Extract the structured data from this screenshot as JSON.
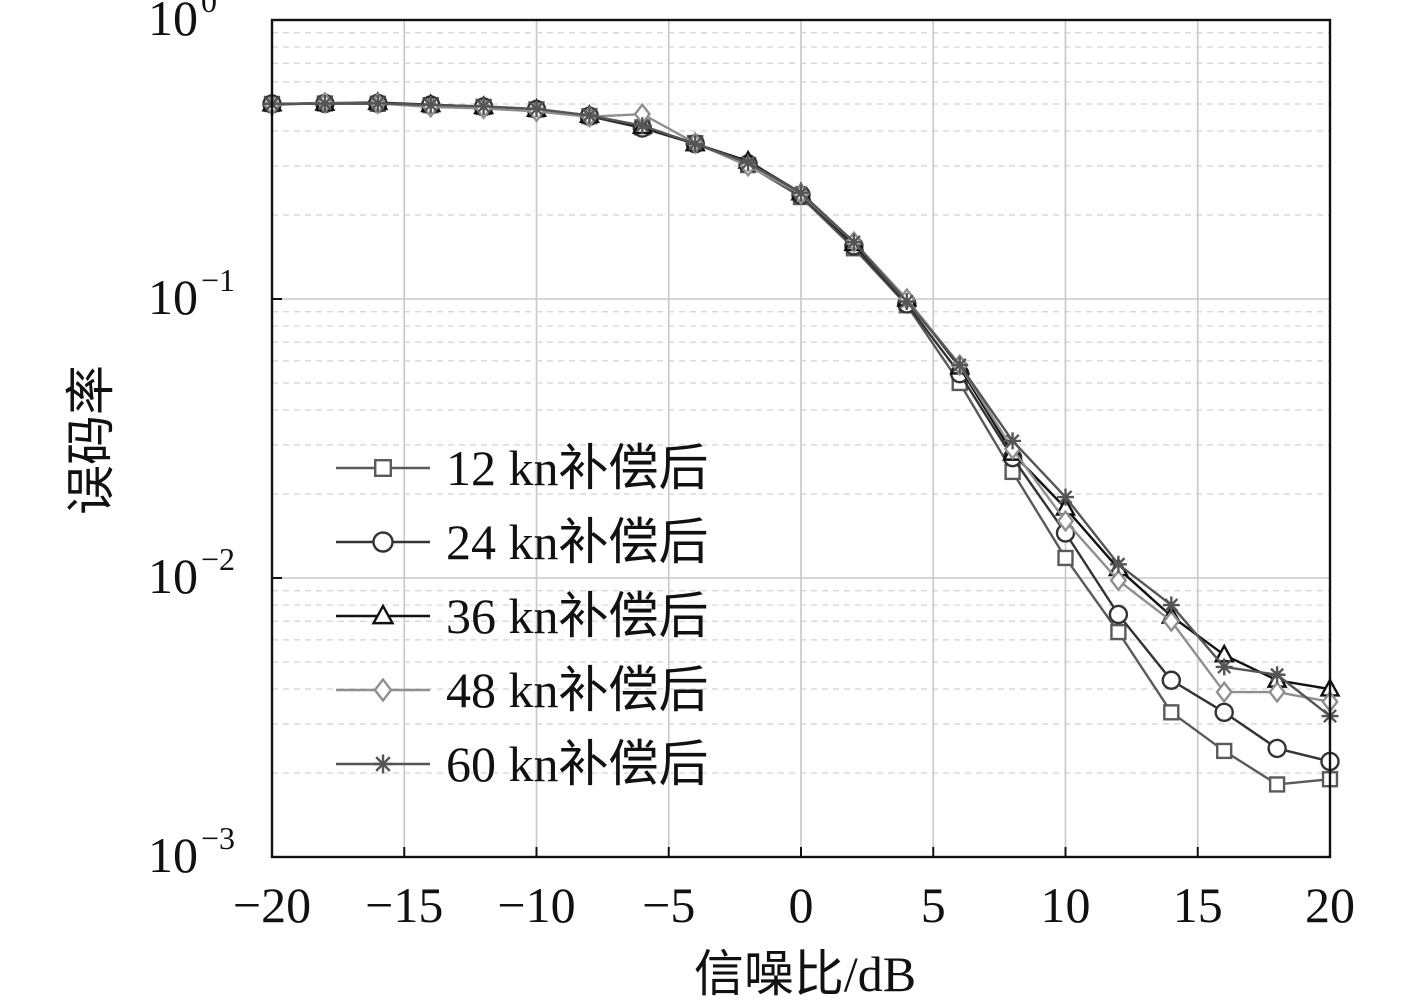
{
  "chart_data": {
    "type": "line",
    "title": "",
    "xlabel": "信噪比/dB",
    "ylabel": "误码率",
    "xscale": "linear",
    "yscale": "log",
    "xlim": [
      -20,
      20
    ],
    "ylim": [
      0.001,
      1
    ],
    "grid": true,
    "legend_position": "center-left",
    "x_ticks": [
      -20,
      -15,
      -10,
      -5,
      0,
      5,
      10,
      15,
      20
    ],
    "x_tick_labels": [
      "−20",
      "−15",
      "−10",
      "−5",
      "0",
      "5",
      "10",
      "15",
      "20"
    ],
    "y_ticks": [
      1,
      0.1,
      0.01,
      0.001
    ],
    "y_tick_labels": [
      {
        "base": "10",
        "exp": "0"
      },
      {
        "base": "10",
        "exp": "−1"
      },
      {
        "base": "10",
        "exp": "−2"
      },
      {
        "base": "10",
        "exp": "−3"
      }
    ],
    "x": [
      -20,
      -18,
      -16,
      -14,
      -12,
      -10,
      -8,
      -6,
      -4,
      -2,
      0,
      2,
      4,
      6,
      8,
      10,
      12,
      14,
      16,
      18,
      20
    ],
    "series": [
      {
        "name": "12 kn补偿后",
        "marker": "square",
        "color": "#5a5a5a",
        "values": [
          0.5,
          0.502,
          0.501,
          0.495,
          0.488,
          0.478,
          0.452,
          0.412,
          0.362,
          0.302,
          0.232,
          0.152,
          0.095,
          0.05,
          0.024,
          0.0118,
          0.0064,
          0.0033,
          0.0024,
          0.00182,
          0.0019
        ]
      },
      {
        "name": "24 kn补偿后",
        "marker": "circle",
        "color": "#333333",
        "values": [
          0.5,
          0.502,
          0.503,
          0.496,
          0.488,
          0.478,
          0.452,
          0.41,
          0.36,
          0.305,
          0.236,
          0.155,
          0.096,
          0.054,
          0.027,
          0.0145,
          0.0074,
          0.0043,
          0.0033,
          0.00245,
          0.0022
        ]
      },
      {
        "name": "36 kn补偿后",
        "marker": "triangle",
        "color": "#111111",
        "values": [
          0.5,
          0.503,
          0.506,
          0.497,
          0.489,
          0.478,
          0.455,
          0.415,
          0.36,
          0.312,
          0.24,
          0.158,
          0.1,
          0.057,
          0.028,
          0.0178,
          0.0108,
          0.0073,
          0.0053,
          0.0043,
          0.004
        ]
      },
      {
        "name": "48 kn补偿后",
        "marker": "diamond",
        "color": "#8f8f8f",
        "values": [
          0.495,
          0.505,
          0.502,
          0.488,
          0.482,
          0.47,
          0.45,
          0.46,
          0.362,
          0.3,
          0.238,
          0.16,
          0.1,
          0.058,
          0.029,
          0.016,
          0.0098,
          0.007,
          0.0039,
          0.0039,
          0.0036
        ]
      },
      {
        "name": "60 kn补偿后",
        "marker": "asterisk",
        "color": "#555555",
        "values": [
          0.5,
          0.502,
          0.503,
          0.496,
          0.49,
          0.48,
          0.455,
          0.418,
          0.36,
          0.308,
          0.24,
          0.16,
          0.098,
          0.058,
          0.031,
          0.0195,
          0.0112,
          0.008,
          0.0048,
          0.0045,
          0.0032
        ]
      }
    ]
  }
}
